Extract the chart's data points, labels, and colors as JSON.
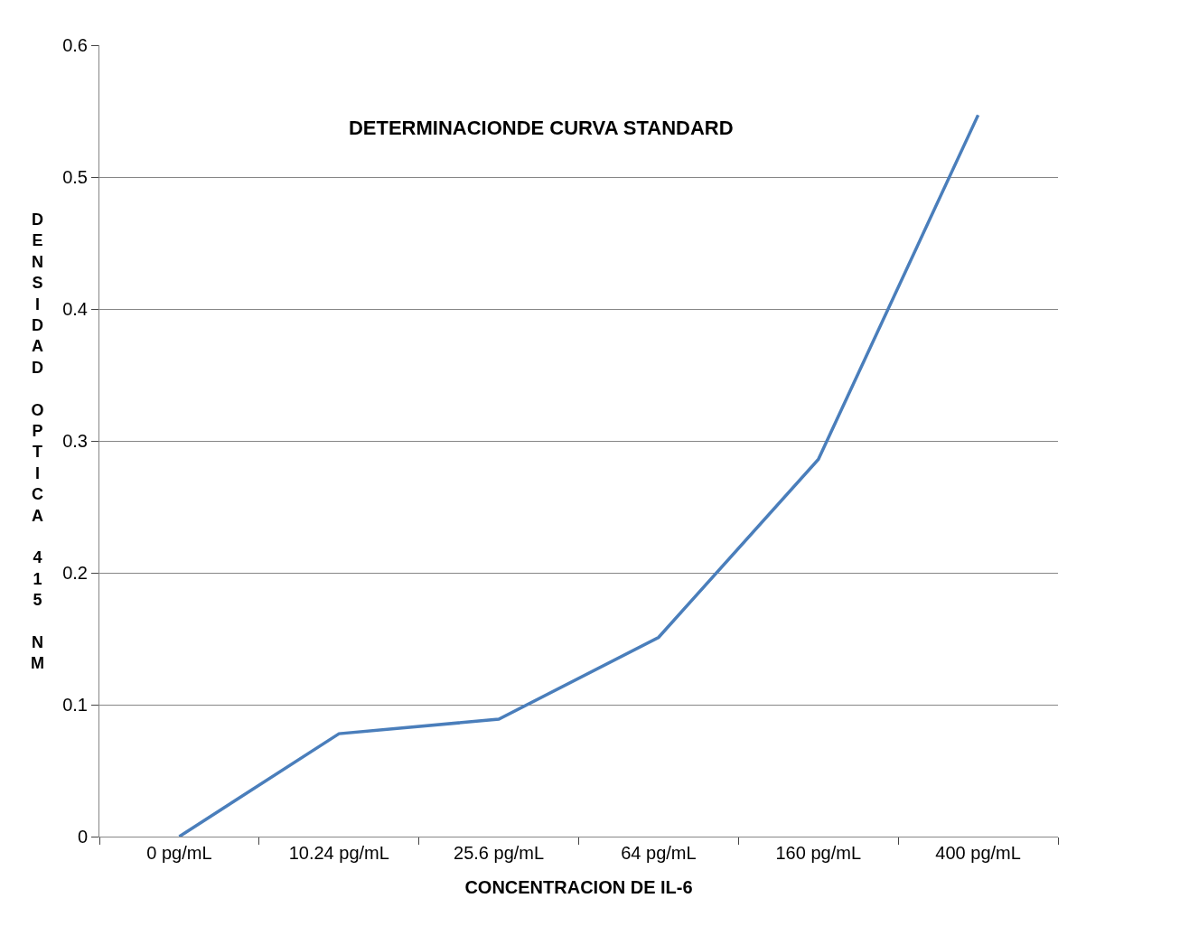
{
  "chart_data": {
    "type": "line",
    "title": "DETERMINACIONDE CURVA STANDARD",
    "xlabel": "CONCENTRACION DE IL-6",
    "ylabel": "DENSIDAD OPTICA 415 NM",
    "categories": [
      "0 pg/mL",
      "10.24 pg/mL",
      "25.6 pg/mL",
      "64 pg/mL",
      "160 pg/mL",
      "400 pg/mL"
    ],
    "series": [
      {
        "color": "#4a7ebb",
        "values": [
          0,
          0.078,
          0.089,
          0.151,
          0.286,
          0.547
        ]
      }
    ],
    "ylim": [
      0,
      0.6
    ],
    "yticks": [
      0,
      0.1,
      0.2,
      0.3,
      0.4,
      0.5,
      0.6
    ],
    "grid": "y",
    "legend": false,
    "marker": "none",
    "line_style": "solid"
  }
}
